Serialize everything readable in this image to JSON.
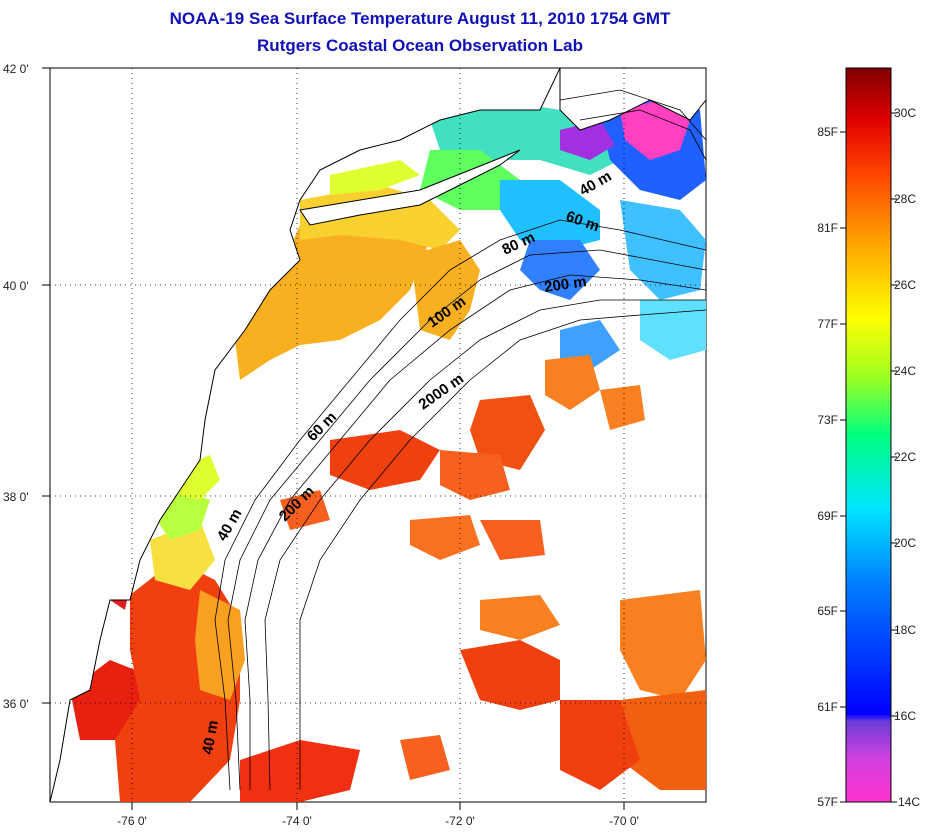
{
  "title_line1": "NOAA-19 Sea Surface Temperature August 11, 2010 1754 GMT",
  "title_line2": "Rutgers Coastal Ocean Observation Lab",
  "map": {
    "lon_labels": [
      "-76 0'",
      "-74 0'",
      "-72 0'",
      "-70 0'"
    ],
    "lat_labels": [
      "42 0'",
      "40 0'",
      "38 0'",
      "36 0'"
    ],
    "depth_labels": [
      "40 m",
      "60 m",
      "80 m",
      "200 m",
      "100 m",
      "2000 m",
      "60 m",
      "200 m",
      "40 m",
      "40 m"
    ],
    "colors": {
      "land": "#ffffff",
      "no_data": "#ffffff",
      "gridline": "#000000"
    }
  },
  "colorbar": {
    "fahrenheit_labels": [
      "85F",
      "81F",
      "77F",
      "73F",
      "69F",
      "65F",
      "61F",
      "57F"
    ],
    "celsius_labels": [
      "30C",
      "28C",
      "26C",
      "24C",
      "22C",
      "20C",
      "18C",
      "16C",
      "14C"
    ],
    "colors": [
      "#ff33cc",
      "#8a2be2",
      "#0000ff",
      "#0080ff",
      "#00e5ff",
      "#00ff80",
      "#a0ff20",
      "#ffff00",
      "#ffa500",
      "#ff4000",
      "#e00000",
      "#800000"
    ]
  }
}
